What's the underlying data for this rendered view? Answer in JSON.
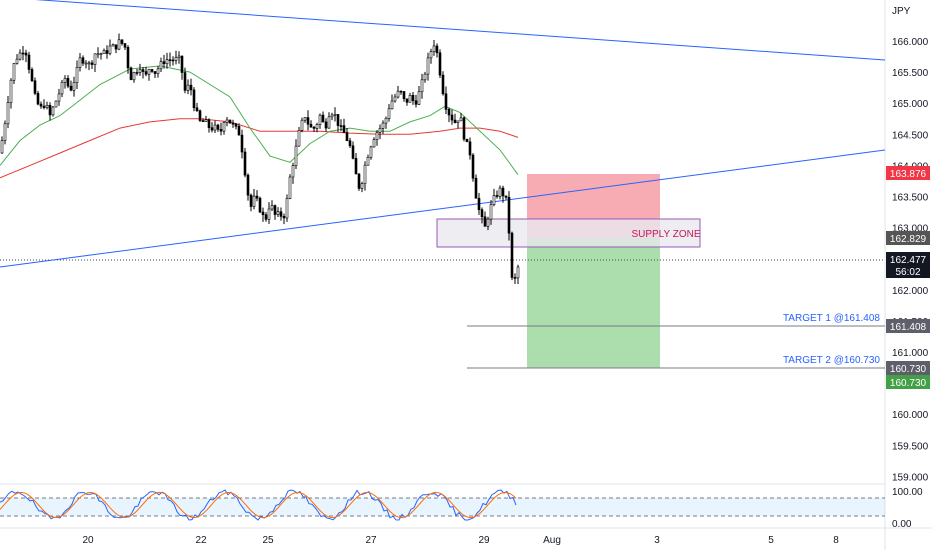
{
  "chart_data": {
    "type": "candlestick",
    "currency_label": "JPY",
    "price_axis": {
      "range": [
        158.8,
        167.0
      ],
      "ticks": [
        "166.000",
        "165.500",
        "165.000",
        "164.500",
        "164.000",
        "163.500",
        "163.000",
        "162.000",
        "161.500",
        "161.000",
        "160.000",
        "159.500",
        "159.000"
      ]
    },
    "time_axis": {
      "ticks": [
        "20",
        "22",
        "25",
        "27",
        "29",
        "Aug",
        "3",
        "5",
        "8"
      ]
    },
    "current_price": {
      "value": "162.477",
      "countdown": "56:02"
    },
    "price_badges": {
      "stop": "163.876",
      "entry": "162.829",
      "target1": "161.408",
      "target2a": "160.730",
      "target2b": "160.730"
    },
    "zones": {
      "stop_zone": {
        "from": 162.829,
        "to": 163.876
      },
      "profit_zone": {
        "from": 160.73,
        "to": 162.829
      },
      "supply_zone": {
        "label": "SUPPLY ZONE",
        "from": 162.72,
        "to": 163.13
      }
    },
    "targets": [
      {
        "label": "TARGET 1 @161.408",
        "price": 161.408
      },
      {
        "label": "TARGET 2 @160.730",
        "price": 160.73
      }
    ],
    "trendlines": [
      {
        "name": "upper",
        "from": [
          0,
          167.05
        ],
        "to": [
          885,
          165.68
        ]
      },
      {
        "name": "lower",
        "from": [
          0,
          162.3
        ],
        "to": [
          885,
          164.27
        ]
      }
    ],
    "close_path": [
      [
        0,
        164.2
      ],
      [
        5,
        164.7
      ],
      [
        10,
        165.3
      ],
      [
        15,
        165.7
      ],
      [
        20,
        165.8
      ],
      [
        25,
        165.9
      ],
      [
        30,
        165.5
      ],
      [
        35,
        165.1
      ],
      [
        40,
        164.9
      ],
      [
        45,
        165.0
      ],
      [
        50,
        164.8
      ],
      [
        55,
        165.0
      ],
      [
        60,
        165.2
      ],
      [
        65,
        165.4
      ],
      [
        70,
        165.2
      ],
      [
        75,
        165.4
      ],
      [
        80,
        165.7
      ],
      [
        85,
        165.7
      ],
      [
        90,
        165.6
      ],
      [
        95,
        165.8
      ],
      [
        100,
        165.8
      ],
      [
        105,
        165.8
      ],
      [
        110,
        165.9
      ],
      [
        115,
        165.9
      ],
      [
        120,
        166.0
      ],
      [
        125,
        165.9
      ],
      [
        130,
        165.4
      ],
      [
        135,
        165.5
      ],
      [
        140,
        165.6
      ],
      [
        145,
        165.4
      ],
      [
        150,
        165.6
      ],
      [
        155,
        165.5
      ],
      [
        160,
        165.6
      ],
      [
        165,
        165.7
      ],
      [
        170,
        165.7
      ],
      [
        175,
        165.7
      ],
      [
        180,
        165.7
      ],
      [
        185,
        165.2
      ],
      [
        190,
        165.3
      ],
      [
        195,
        164.9
      ],
      [
        200,
        164.7
      ],
      [
        205,
        164.7
      ],
      [
        210,
        164.6
      ],
      [
        215,
        164.6
      ],
      [
        220,
        164.5
      ],
      [
        225,
        164.8
      ],
      [
        230,
        164.7
      ],
      [
        235,
        164.6
      ],
      [
        240,
        164.5
      ],
      [
        245,
        163.9
      ],
      [
        250,
        163.3
      ],
      [
        255,
        163.5
      ],
      [
        260,
        163.3
      ],
      [
        265,
        163.1
      ],
      [
        270,
        163.4
      ],
      [
        275,
        163.2
      ],
      [
        280,
        163.2
      ],
      [
        285,
        163.2
      ],
      [
        290,
        163.8
      ],
      [
        295,
        164.2
      ],
      [
        300,
        164.6
      ],
      [
        305,
        164.8
      ],
      [
        310,
        164.6
      ],
      [
        315,
        164.6
      ],
      [
        320,
        164.8
      ],
      [
        325,
        164.6
      ],
      [
        330,
        164.9
      ],
      [
        335,
        164.8
      ],
      [
        340,
        164.6
      ],
      [
        345,
        164.5
      ],
      [
        350,
        164.3
      ],
      [
        355,
        163.9
      ],
      [
        360,
        163.6
      ],
      [
        365,
        164.0
      ],
      [
        370,
        164.3
      ],
      [
        375,
        164.5
      ],
      [
        380,
        164.6
      ],
      [
        385,
        164.7
      ],
      [
        390,
        165.0
      ],
      [
        395,
        165.1
      ],
      [
        400,
        165.2
      ],
      [
        405,
        165.0
      ],
      [
        410,
        165.1
      ],
      [
        415,
        165.0
      ],
      [
        420,
        165.2
      ],
      [
        425,
        165.5
      ],
      [
        430,
        165.8
      ],
      [
        435,
        166.0
      ],
      [
        440,
        165.5
      ],
      [
        445,
        165.0
      ],
      [
        450,
        164.8
      ],
      [
        455,
        164.7
      ],
      [
        460,
        164.8
      ],
      [
        465,
        164.4
      ],
      [
        470,
        164.2
      ],
      [
        475,
        163.6
      ],
      [
        480,
        163.2
      ],
      [
        485,
        163.0
      ],
      [
        490,
        163.3
      ],
      [
        495,
        163.5
      ],
      [
        500,
        163.6
      ],
      [
        505,
        163.5
      ],
      [
        508,
        163.3
      ],
      [
        511,
        162.2
      ],
      [
        514,
        162.1
      ],
      [
        517,
        162.3
      ],
      [
        520,
        162.477
      ]
    ],
    "ema_fast_path": [
      [
        0,
        164.0
      ],
      [
        20,
        164.4
      ],
      [
        40,
        164.65
      ],
      [
        60,
        164.8
      ],
      [
        80,
        165.05
      ],
      [
        100,
        165.3
      ],
      [
        130,
        165.55
      ],
      [
        160,
        165.6
      ],
      [
        190,
        165.5
      ],
      [
        210,
        165.3
      ],
      [
        230,
        165.1
      ],
      [
        250,
        164.6
      ],
      [
        270,
        164.15
      ],
      [
        290,
        164.05
      ],
      [
        310,
        164.35
      ],
      [
        330,
        164.55
      ],
      [
        350,
        164.6
      ],
      [
        370,
        164.55
      ],
      [
        390,
        164.55
      ],
      [
        410,
        164.7
      ],
      [
        430,
        164.8
      ],
      [
        445,
        164.95
      ],
      [
        460,
        164.85
      ],
      [
        480,
        164.55
      ],
      [
        500,
        164.25
      ],
      [
        518,
        163.85
      ]
    ],
    "ema_slow_path": [
      [
        0,
        163.8
      ],
      [
        30,
        164.0
      ],
      [
        60,
        164.2
      ],
      [
        90,
        164.4
      ],
      [
        120,
        164.6
      ],
      [
        150,
        164.7
      ],
      [
        180,
        164.75
      ],
      [
        200,
        164.75
      ],
      [
        230,
        164.7
      ],
      [
        260,
        164.55
      ],
      [
        290,
        164.55
      ],
      [
        320,
        164.55
      ],
      [
        350,
        164.52
      ],
      [
        380,
        164.5
      ],
      [
        410,
        164.5
      ],
      [
        440,
        164.55
      ],
      [
        460,
        164.6
      ],
      [
        480,
        164.6
      ],
      [
        500,
        164.55
      ],
      [
        518,
        164.45
      ]
    ],
    "oscillator": {
      "labels": [
        "100.00",
        "0.00"
      ],
      "range": [
        0,
        100
      ]
    }
  }
}
